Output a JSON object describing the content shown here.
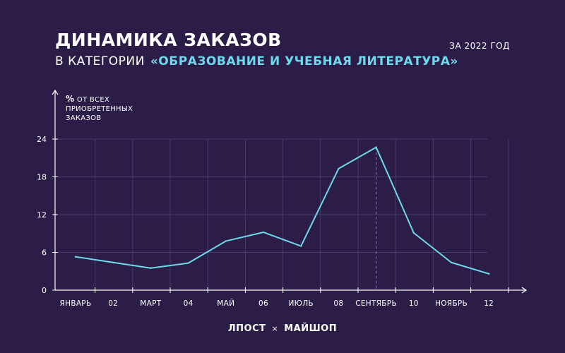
{
  "header": {
    "title": "ДИНАМИКА ЗАКАЗОВ",
    "subtitle_prefix": "В КАТЕГОРИИ",
    "subtitle_category": "«ОБРАЗОВАНИЕ И УЧЕБНАЯ ЛИТЕРАТУРА»",
    "period": "ЗА 2022 ГОД"
  },
  "axis": {
    "ylabel_pct": "%",
    "ylabel_rest": "ОТ ВСЕХ",
    "ylabel_line2": "ПРИОБРЕТЕННЫХ",
    "ylabel_line3": "ЗАКАЗОВ"
  },
  "footer": {
    "brand_left": "ЛПОСТ",
    "separator": "×",
    "brand_right": "МАЙШОП"
  },
  "colors": {
    "background": "#2b1d47",
    "line": "#6fd8ec",
    "grid": "#4a3a6e",
    "axis": "#ffffff"
  },
  "chart_data": {
    "type": "line",
    "categories": [
      "ЯНВАРЬ",
      "02",
      "МАРТ",
      "04",
      "МАЙ",
      "06",
      "ИЮЛЬ",
      "08",
      "СЕНТЯБРЬ",
      "10",
      "НОЯБРЬ",
      "12"
    ],
    "series": [
      {
        "values": [
          5.3,
          4.4,
          3.5,
          4.3,
          7.8,
          9.2,
          7.0,
          19.3,
          22.7,
          9.1,
          4.4,
          2.6
        ]
      }
    ],
    "yticks": [
      0,
      6,
      12,
      18,
      24
    ],
    "ylim": [
      0,
      24
    ],
    "grid": true,
    "highlight_index": 8,
    "title": "ДИНАМИКА ЗАКАЗОВ",
    "ylabel": "% ОТ ВСЕХ ПРИОБРЕТЕННЫХ ЗАКАЗОВ"
  }
}
